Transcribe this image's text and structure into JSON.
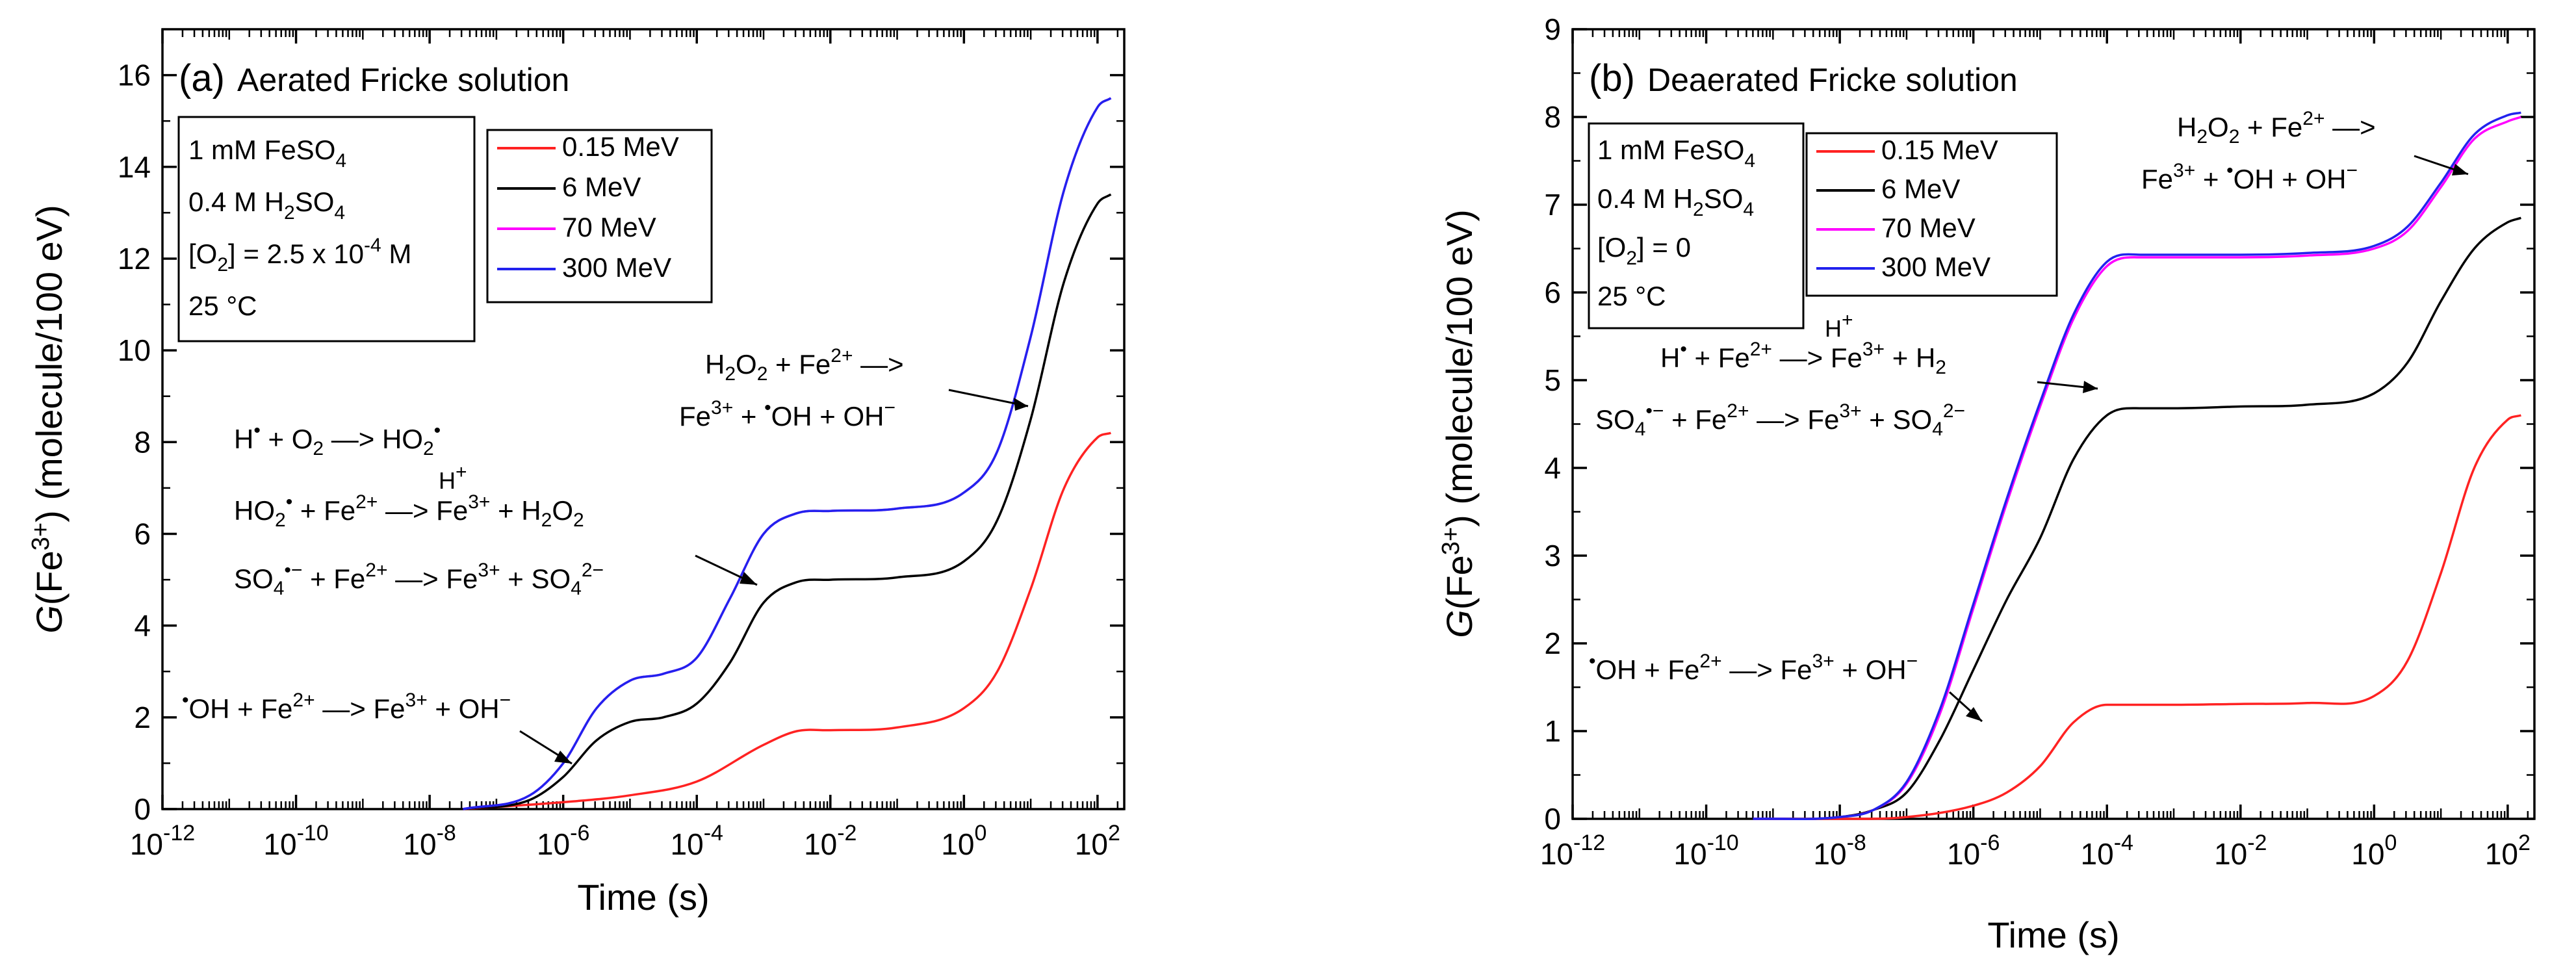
{
  "chart_data": [
    {
      "type": "line",
      "panel_label": "(a)",
      "title": "Aerated Fricke solution",
      "xlabel": "Time (s)",
      "ylabel": "G(Fe3+) (molecule/100 eV)",
      "x_scale": "log",
      "xlim_exp": [
        -12,
        2.4
      ],
      "ylim": [
        0,
        17
      ],
      "x_ticks": [
        "10-12",
        "10-10",
        "10-8",
        "10-6",
        "10-4",
        "10-2",
        "100",
        "102"
      ],
      "y_ticks": [
        "0",
        "2",
        "4",
        "6",
        "8",
        "10",
        "12",
        "14",
        "16"
      ],
      "conditions": [
        "1 mM FeSO4",
        "0.4 M H2SO4",
        "[O2] = 2.5 x 10-4 M",
        "25 °C"
      ],
      "series": [
        {
          "name": "0.15 MeV",
          "color": "#ff2222",
          "x_log10": [
            -7.5,
            -6,
            -5,
            -4,
            -3,
            -2.5,
            -2,
            -1,
            0,
            0.5,
            1,
            1.5,
            2,
            2.2
          ],
          "values": [
            0,
            0.15,
            0.3,
            0.6,
            1.4,
            1.7,
            1.72,
            1.78,
            2.2,
            3,
            4.8,
            7,
            8.1,
            8.2
          ]
        },
        {
          "name": "6 MeV",
          "color": "#000000",
          "x_log10": [
            -7.5,
            -6.5,
            -6,
            -5.5,
            -5,
            -4.5,
            -4,
            -3.5,
            -3,
            -2.5,
            -2,
            -1,
            0,
            0.5,
            1,
            1.5,
            2,
            2.2
          ],
          "values": [
            0,
            0.2,
            0.7,
            1.5,
            1.9,
            2.0,
            2.3,
            3.2,
            4.5,
            4.95,
            5.0,
            5.05,
            5.4,
            6.3,
            8.5,
            11.5,
            13.2,
            13.4
          ]
        },
        {
          "name": "70 MeV",
          "color": "#ff00ff",
          "x_log10": [
            -7.5,
            -6.5,
            -6,
            -5.5,
            -5,
            -4.5,
            -4,
            -3.5,
            -3,
            -2.5,
            -2,
            -1,
            0,
            0.5,
            1,
            1.5,
            2,
            2.2
          ],
          "values": [
            0,
            0.3,
            1.0,
            2.2,
            2.8,
            2.95,
            3.3,
            4.6,
            6.0,
            6.45,
            6.5,
            6.55,
            6.9,
            7.8,
            10.3,
            13.5,
            15.3,
            15.5
          ]
        },
        {
          "name": "300 MeV",
          "color": "#2222ee",
          "x_log10": [
            -7.5,
            -6.5,
            -6,
            -5.5,
            -5,
            -4.5,
            -4,
            -3.5,
            -3,
            -2.5,
            -2,
            -1,
            0,
            0.5,
            1,
            1.5,
            2,
            2.2
          ],
          "values": [
            0,
            0.3,
            1.0,
            2.2,
            2.8,
            2.95,
            3.3,
            4.6,
            6.0,
            6.45,
            6.5,
            6.55,
            6.9,
            7.8,
            10.3,
            13.5,
            15.3,
            15.5
          ]
        }
      ],
      "legend_position": "top-middle"
    },
    {
      "type": "line",
      "panel_label": "(b)",
      "title": "Deaerated Fricke solution",
      "xlabel": "Time (s)",
      "ylabel": "G(Fe3+) (molecule/100 eV)",
      "x_scale": "log",
      "xlim_exp": [
        -12,
        2.4
      ],
      "ylim": [
        0,
        9
      ],
      "x_ticks": [
        "10-12",
        "10-10",
        "10-8",
        "10-6",
        "10-4",
        "10-2",
        "100",
        "102"
      ],
      "y_ticks": [
        "0",
        "1",
        "2",
        "3",
        "4",
        "5",
        "6",
        "7",
        "8",
        "9"
      ],
      "conditions": [
        "1 mM FeSO4",
        "0.4 M H2SO4",
        "[O2] = 0",
        "25 °C"
      ],
      "series": [
        {
          "name": "0.15 MeV",
          "color": "#ff2222",
          "x_log10": [
            -9.3,
            -8,
            -7,
            -6,
            -5.5,
            -5,
            -4.5,
            -4,
            -3.5,
            -3,
            -2,
            -1,
            0,
            0.5,
            1,
            1.5,
            2,
            2.2
          ],
          "values": [
            0,
            0,
            0.02,
            0.15,
            0.3,
            0.6,
            1.1,
            1.3,
            1.3,
            1.3,
            1.31,
            1.32,
            1.4,
            1.8,
            2.8,
            4.0,
            4.55,
            4.6
          ]
        },
        {
          "name": "6 MeV",
          "color": "#000000",
          "x_log10": [
            -9.3,
            -8,
            -7.5,
            -7,
            -6.5,
            -6,
            -5.5,
            -5,
            -4.5,
            -4,
            -3.5,
            -3,
            -2,
            -1,
            0,
            0.5,
            1,
            1.5,
            2,
            2.2
          ],
          "values": [
            0,
            0.02,
            0.1,
            0.3,
            0.9,
            1.7,
            2.5,
            3.2,
            4.1,
            4.6,
            4.68,
            4.68,
            4.7,
            4.72,
            4.85,
            5.2,
            5.9,
            6.5,
            6.8,
            6.85
          ]
        },
        {
          "name": "70 MeV",
          "color": "#ff00ff",
          "x_log10": [
            -9.3,
            -8,
            -7.5,
            -7,
            -6.5,
            -6,
            -5.5,
            -5,
            -4.5,
            -4,
            -3.5,
            -3,
            -2,
            -1,
            0,
            0.5,
            1,
            1.5,
            2,
            2.2
          ],
          "values": [
            0,
            0.02,
            0.1,
            0.4,
            1.2,
            2.4,
            3.6,
            4.7,
            5.7,
            6.3,
            6.4,
            6.4,
            6.4,
            6.42,
            6.5,
            6.7,
            7.2,
            7.75,
            7.95,
            8.0
          ]
        },
        {
          "name": "300 MeV",
          "color": "#2222ee",
          "x_log10": [
            -9.3,
            -8,
            -7.5,
            -7,
            -6.5,
            -6,
            -5.5,
            -5,
            -4.5,
            -4,
            -3.5,
            -3,
            -2,
            -1,
            0,
            0.5,
            1,
            1.5,
            2,
            2.2
          ],
          "values": [
            0,
            0.02,
            0.1,
            0.42,
            1.25,
            2.45,
            3.65,
            4.75,
            5.75,
            6.35,
            6.43,
            6.43,
            6.43,
            6.45,
            6.53,
            6.75,
            7.25,
            7.8,
            8.02,
            8.05
          ]
        }
      ],
      "legend_position": "top-left"
    }
  ],
  "annotations": {
    "a": [
      "H• + O2 —> HO2•",
      "HO2• + Fe2+ —H+—> Fe3+ + H2O2",
      "SO4•− + Fe2+ —> Fe3+ + SO42−",
      "•OH + Fe2+ —> Fe3+ + OH−",
      "H2O2 + Fe2+ —>",
      "Fe3+ + •OH + OH−"
    ],
    "b": [
      "H2O2 + Fe2+ —>",
      "Fe3+ + •OH + OH−",
      "H• + Fe2+ —H+—> Fe3+ + H2",
      "SO4•− + Fe2+ —> Fe3+ + SO42−",
      "•OH + Fe2+ —> Fe3+ + OH−"
    ]
  },
  "text": {
    "x_label": "Time (s)",
    "y_label_main": "(Fe",
    "y_label_sup": "3+",
    "y_label_rest": ") (molecule/100 eV)",
    "y_label_G": "G",
    "a_label": "(a)",
    "a_title": "Aerated Fricke solution",
    "b_label": "(b)",
    "b_title": "Deaerated Fricke solution",
    "cond_fe": "1 mM FeSO",
    "cond_h2so4_a": "0.4 M H",
    "cond_h2so4_b": "SO",
    "cond_o2_a": "] = 2.5 x 10",
    "cond_o2_a_exp": "-4",
    "cond_o2_a_unit": " M",
    "cond_o2_b": "] = 0",
    "cond_temp": "25 °C"
  }
}
